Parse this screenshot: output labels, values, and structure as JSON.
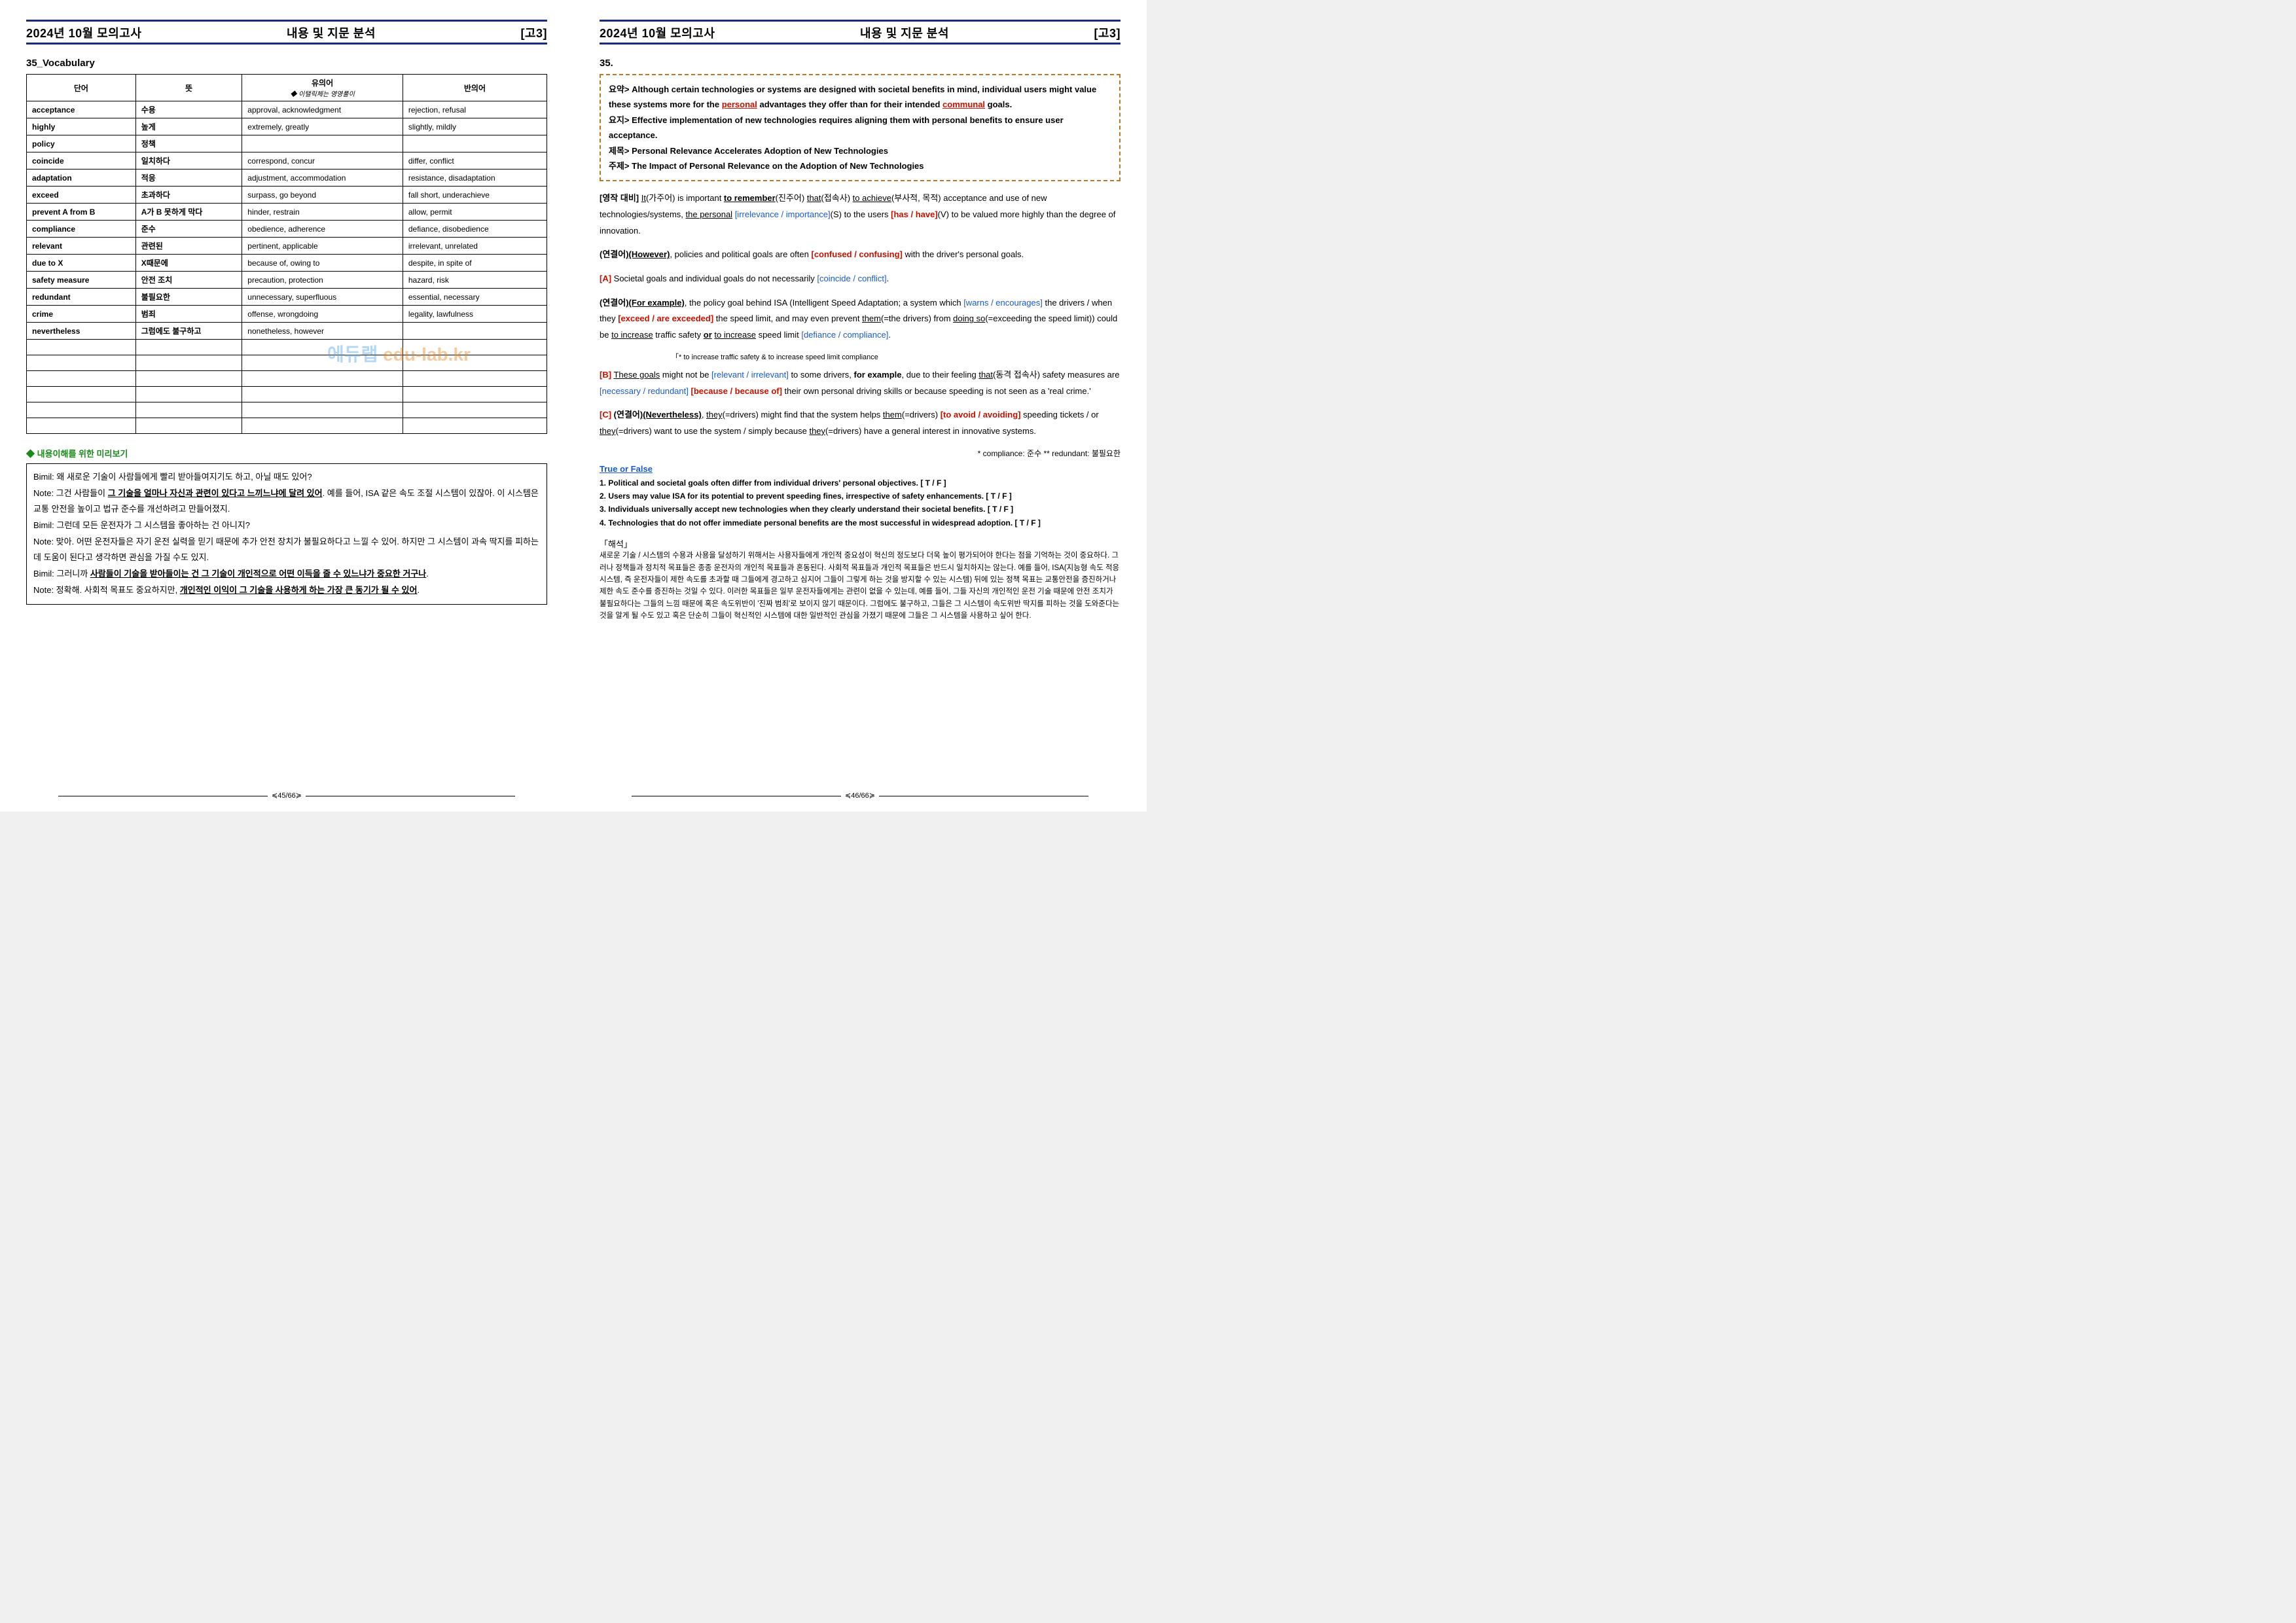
{
  "header": {
    "left": "2024년 10월 모의고사",
    "center": "내용 및 지문 분석",
    "right": "[고3]"
  },
  "left_page": {
    "section_title": "35_Vocabulary",
    "table": {
      "headers": [
        "단어",
        "뜻",
        "유의어",
        "반의어"
      ],
      "header_sub": "◆ 이탤릭체는 영영풀이",
      "rows": [
        [
          "acceptance",
          "수용",
          "approval, acknowledgment",
          "rejection, refusal"
        ],
        [
          "highly",
          "높게",
          "extremely, greatly",
          "slightly, mildly"
        ],
        [
          "policy",
          "정책",
          "",
          ""
        ],
        [
          "coincide",
          "일치하다",
          "correspond, concur",
          "differ, conflict"
        ],
        [
          "adaptation",
          "적응",
          "adjustment, accommodation",
          "resistance, disadaptation"
        ],
        [
          "exceed",
          "초과하다",
          "surpass, go beyond",
          "fall short, underachieve"
        ],
        [
          "prevent A from B",
          "A가 B 못하게 막다",
          "hinder, restrain",
          "allow, permit"
        ],
        [
          "compliance",
          "준수",
          "obedience, adherence",
          "defiance, disobedience"
        ],
        [
          "relevant",
          "관련된",
          "pertinent, applicable",
          "irrelevant, unrelated"
        ],
        [
          "due to X",
          "X때문에",
          "because of, owing to",
          "despite, in spite of"
        ],
        [
          "safety measure",
          "안전 조치",
          "precaution, protection",
          "hazard, risk"
        ],
        [
          "redundant",
          "불필요한",
          "unnecessary, superfluous",
          "essential, necessary"
        ],
        [
          "crime",
          "범죄",
          "offense, wrongdoing",
          "legality, lawfulness"
        ],
        [
          "nevertheless",
          "그럼에도 불구하고",
          "nonetheless, however",
          ""
        ],
        [
          "",
          "",
          "",
          ""
        ],
        [
          "",
          "",
          "",
          ""
        ],
        [
          "",
          "",
          "",
          ""
        ],
        [
          "",
          "",
          "",
          ""
        ],
        [
          "",
          "",
          "",
          ""
        ],
        [
          "",
          "",
          "",
          ""
        ]
      ]
    },
    "preview_title": "◆ 내용이해를 위한 미리보기",
    "preview": {
      "l1_a": "Bimil: 왜 새로운 기술이 사람들에게 빨리 받아들여지기도 하고, 아닐 때도 있어?",
      "l2_a": "Note: 그건 사람들이 ",
      "l2_b": "그 기술을 얼마나 자신과 관련이 있다고 느끼느냐에 달려 있어",
      "l2_c": ". 예를 들어, ISA 같은 속도 조절 시스템이 있잖아. 이 시스템은 교통 안전을 높이고 법규 준수를 개선하려고 만들어졌지.",
      "l3_a": "Bimil: 그런데 모든 운전자가 그 시스템을 좋아하는 건 아니지?",
      "l4_a": "Note: 맞아. 어떤 운전자들은 자기 운전 실력을 믿기 때문에 추가 안전 장치가 불필요하다고 느낄 수 있어. 하지만 그 시스템이 과속 딱지를 피하는 데 도움이 된다고 생각하면 관심을 가질 수도 있지.",
      "l5_a": "Bimil: 그러니까 ",
      "l5_b": "사람들이 기술을 받아들이는 건 그 기술이 개인적으로 어떤 이득을 줄 수 있느냐가 중요한 거구나",
      "l5_c": ".",
      "l6_a": "Note: 정확해. 사회적 목표도 중요하지만, ",
      "l6_b": "개인적인 이익이 그 기술을 사용하게 하는 가장 큰 동기가 될 수 있어",
      "l6_c": "."
    },
    "footer": "≼45/66≽"
  },
  "right_page": {
    "section_title": "35.",
    "summary": {
      "yoyak_label": "요약> ",
      "yoyak_a": "Although certain technologies or systems are designed with societal benefits in mind, individual users might value these systems more for the ",
      "yoyak_b": "personal",
      "yoyak_c": " advantages they offer than for their intended ",
      "yoyak_d": "communal",
      "yoyak_e": " goals.",
      "yoji_label": "요지> ",
      "yoji": "Effective implementation of new technologies requires aligning them with personal benefits to ensure user acceptance.",
      "jemok_label": "제목> ",
      "jemok": "Personal Relevance Accelerates Adoption of New Technologies",
      "juje_label": "주제> ",
      "juje": "The Impact of Personal Relevance on the Adoption of New Technologies"
    },
    "para1": {
      "tag": "[영작 대비] ",
      "a": "It",
      "b": "(가주어) is important ",
      "c": "to remember",
      "d": "(진주어) ",
      "e": "that",
      "f": "(접속사) ",
      "g": "to achieve",
      "h": "(부사적, 목적) acceptance and use of new technologies/systems, ",
      "i": "the personal",
      "j": " [irrelevance / importance]",
      "k": "(S) to the users ",
      "l": "[has / have]",
      "m": "(V) to be valued more highly than the degree of innovation."
    },
    "para2": {
      "tag": "(연결어)",
      "a": "(However)",
      "b": ", policies and political goals are often ",
      "c": "[confused / confusing]",
      "d": " with the driver's personal goals."
    },
    "para3": {
      "tag": "[A]",
      "a": " Societal goals and individual goals do not necessarily ",
      "b": "[coincide / conflict]",
      "c": "."
    },
    "para4": {
      "tag": "(연결어)",
      "a": "(For example)",
      "b": ", the policy goal behind ISA (Intelligent Speed Adaptation; a system which ",
      "c": "[warns / encourages]",
      "d": " the drivers / when they ",
      "e": "[exceed / are exceeded]",
      "f": " the speed limit, and may even prevent ",
      "g": "them",
      "h": "(=the drivers) from ",
      "i": "doing so",
      "j": "(=exceeding the speed limit)) could be ",
      "k": "to increase",
      "l": " traffic safety ",
      "m": "or",
      "n": " ",
      "o": "to increase",
      "p": " speed limit ",
      "q": "[defiance / compliance]",
      "r": "."
    },
    "small_note": "「* to increase traffic safety & to increase speed limit compliance",
    "para5": {
      "tag": "[B]",
      "a": " ",
      "b": "These goals",
      "c": " might not be ",
      "d": "[relevant / irrelevant]",
      "e": " to some drivers, ",
      "f": "for example",
      "g": ", due to their feeling ",
      "h": "that",
      "i": "(동격 접속사) safety measures are ",
      "j": "[necessary / redundant]",
      "k": " ",
      "l": "[because / because of]",
      "m": " their own personal driving skills or because speeding is not seen as a 'real crime.'"
    },
    "para6": {
      "tag": "[C]",
      "tag2": " (연결어)",
      "a": "(Nevertheless)",
      "b": ", ",
      "c": "they",
      "d": "(=drivers) might find that the system helps ",
      "e": "them",
      "f": "(=drivers) ",
      "g": "[to avoid / avoiding]",
      "h": " speeding tickets / or ",
      "i": "they",
      "j": "(=drivers) want to use the system / simply because ",
      "k": "they",
      "l": "(=drivers) have a general interest in innovative systems."
    },
    "gloss": "* compliance: 준수 ** redundant: 불필요한",
    "tf_title": "True or False",
    "tf": [
      "1. Political and societal goals often differ from individual drivers' personal objectives. [ T / F ]",
      "2. Users may value ISA for its potential to prevent speeding fines, irrespective of safety enhancements. [ T / F ]",
      "3. Individuals universally accept new technologies when they clearly understand their societal benefits. [ T / F ]",
      "4. Technologies that do not offer immediate personal benefits are the most successful in widespread adoption. [ T / F ]"
    ],
    "interpret_title": "「해석」",
    "interpret": "새로운 기술 / 시스템의 수용과 사용을 달성하기 위해서는 사용자들에게 개인적 중요성이 혁신의 정도보다 더욱 높이 평가되어야 한다는 점을 기억하는 것이 중요하다. 그러나 정책들과 정치적 목표들은 종종 운전자의 개인적 목표들과 혼동된다. 사회적 목표들과 개인적 목표들은 반드시 일치하지는 않는다. 예를 들어, ISA(지능형 속도 적응 시스템, 즉 운전자들이 제한 속도를 초과할 때 그들에게 경고하고 심지어 그들이 그렇게 하는 것을 방지할 수 있는 시스템) 뒤에 있는 정책 목표는 교통안전을 증진하거나 제한 속도 준수를 증진하는 것일 수 있다. 이러한 목표들은 일부 운전자들에게는 관련이 없을 수 있는데, 예를 들어, 그들 자신의 개인적인 운전 기술 때문에 안전 조치가 불필요하다는 그들의 느낌 때문에 혹은 속도위반이 '진짜 범죄'로 보이지 않기 때문이다. 그럼에도 불구하고, 그들은 그 시스템이 속도위반 딱지를 피하는 것을 도와준다는 것을 알게 될 수도 있고 혹은 단순히 그들이 혁신적인 시스템에 대한 일반적인 관심을 가졌기 때문에 그들은 그 시스템을 사용하고 싶어 한다.",
    "footer": "≼46/66≽"
  },
  "watermark": {
    "a": "에듀랩 ",
    "b": "edu-lab.kr"
  }
}
